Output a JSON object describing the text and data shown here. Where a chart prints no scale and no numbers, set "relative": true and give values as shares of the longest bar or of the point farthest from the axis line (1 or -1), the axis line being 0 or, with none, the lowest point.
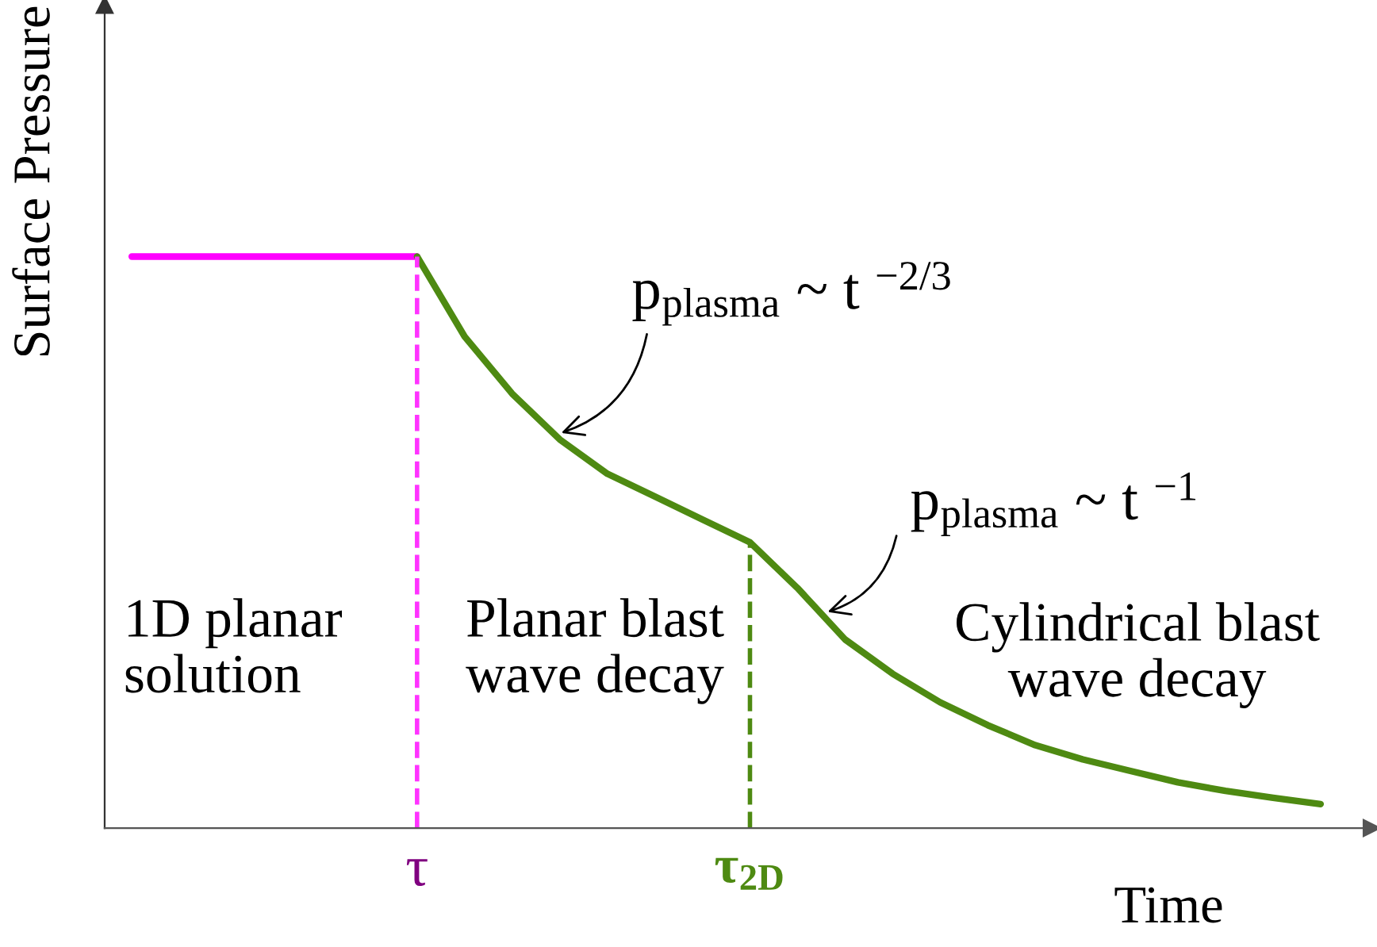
{
  "chart_data": {
    "type": "line",
    "relative": true,
    "xlabel": "Time",
    "ylabel": "Surface Pressure",
    "categories": [
      null,
      null,
      null,
      null,
      null,
      null,
      "τ",
      null,
      null,
      null,
      null,
      null,
      null,
      "τ$_{2D}$",
      null,
      null,
      null,
      null,
      null,
      null,
      null,
      null,
      null,
      null,
      null,
      null
    ],
    "series": [
      {
        "color": "#ff00ff",
        "values": [
          1,
          1,
          1,
          1,
          1,
          1,
          1,
          null,
          null,
          null,
          null,
          null,
          null,
          null,
          null,
          null,
          null,
          null,
          null,
          null,
          null,
          null,
          null,
          null,
          null,
          null
        ]
      },
      {
        "color": "#4e8a12",
        "values": [
          null,
          null,
          null,
          null,
          null,
          null,
          1,
          0.86,
          0.76,
          0.68,
          0.62,
          0.58,
          0.54,
          0.5,
          0.42,
          0.33,
          0.27,
          0.22,
          0.18,
          0.145,
          0.12,
          0.1,
          0.08,
          0.065,
          0.053,
          0.042
        ]
      }
    ],
    "ref_lines": [
      {
        "axis": "x",
        "value": "τ",
        "color": "#ff33ff",
        "line_style": "dashed"
      },
      {
        "axis": "x",
        "value": "τ$_{2D}$",
        "color": "#4e8a12",
        "line_style": "dashed"
      }
    ],
    "annotations": [
      "1D planar\nsolution",
      "Planar blast\nwave decay",
      "Cylindrical blast\nwave decay",
      "p$_{plasma}$ ~ t $^{−2/3}$",
      "p$_{plasma}$ ~ t $^{−1}$"
    ],
    "grid": false,
    "marker": "none",
    "line_style": "solid"
  }
}
